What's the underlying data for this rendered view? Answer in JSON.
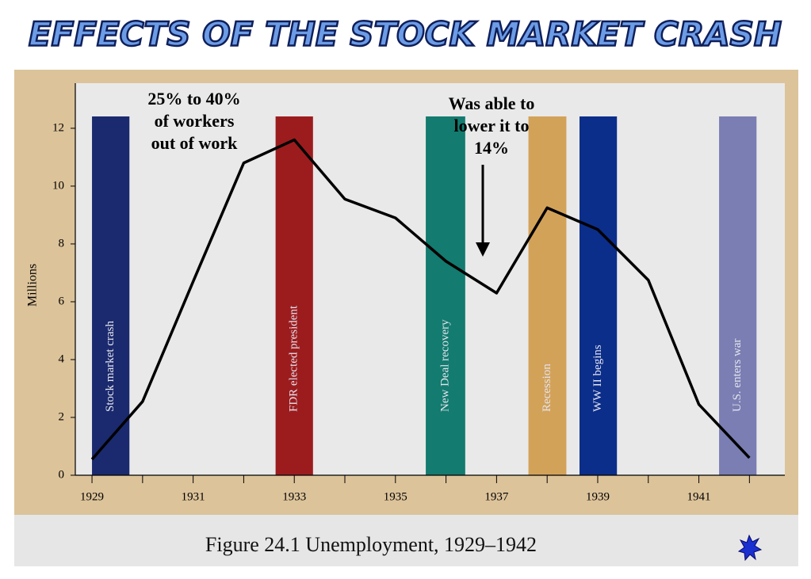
{
  "title": "EFFECTS OF THE STOCK MARKET CRASH",
  "chart_data": {
    "type": "line",
    "y_label": "Millions",
    "x": [
      1929,
      1930,
      1931,
      1932,
      1933,
      1934,
      1935,
      1936,
      1937,
      1938,
      1939,
      1940,
      1941,
      1942
    ],
    "series": [
      {
        "color": "#000000",
        "values": [
          0.55,
          2.55,
          6.7,
          10.8,
          11.6,
          9.55,
          8.9,
          7.4,
          6.3,
          9.25,
          8.5,
          6.75,
          2.45,
          0.6
        ]
      }
    ],
    "xlim": [
      1928.67,
      1942.7
    ],
    "ylim": [
      0,
      13.56
    ],
    "xticks": [
      1929,
      1931,
      1933,
      1935,
      1937,
      1939,
      1941
    ],
    "x_minor_ticks": [
      1930,
      1932,
      1934,
      1936,
      1938,
      1940,
      1942
    ],
    "yticks": [
      0,
      2,
      4,
      6,
      8,
      10,
      12
    ],
    "events": [
      {
        "label": "Stock market crash",
        "start": 1929,
        "end": 1929.74,
        "color": "#1b2a6e"
      },
      {
        "label": "FDR elected president",
        "start": 1932.63,
        "end": 1933.37,
        "color": "#9c1c1e"
      },
      {
        "label": "New Deal recovery",
        "start": 1935.6,
        "end": 1936.38,
        "color": "#137b6f"
      },
      {
        "label": "Recession",
        "start": 1937.63,
        "end": 1938.38,
        "color": "#d3a259"
      },
      {
        "label": "WW II begins",
        "start": 1938.64,
        "end": 1939.38,
        "color": "#0b2e8a"
      },
      {
        "label": "U.S. enters war",
        "start": 1941.4,
        "end": 1942.14,
        "color": "#7a7eb2"
      }
    ],
    "annotations": [
      [
        "25% to 40%",
        "of workers",
        "out of work"
      ],
      [
        "Was able to",
        "lower it to",
        "14%"
      ]
    ],
    "caption": "Figure 24.1  Unemployment, 1929–1942"
  }
}
